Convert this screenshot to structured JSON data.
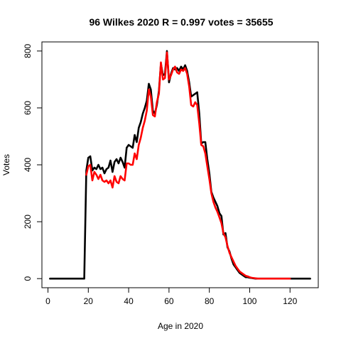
{
  "chart_data": {
    "type": "line",
    "title": "96 Wilkes 2020 R = 0.997 votes = 35655",
    "xlabel": "Age in 2020",
    "ylabel": "Votes",
    "xlim": [
      -3,
      134
    ],
    "ylim": [
      -32,
      832
    ],
    "x_ticks": [
      0,
      20,
      40,
      60,
      80,
      100,
      120
    ],
    "y_ticks": [
      0,
      200,
      400,
      600,
      800
    ],
    "series": [
      {
        "color": "#000000",
        "points": [
          [
            1,
            0
          ],
          [
            18,
            0
          ],
          [
            19,
            380
          ],
          [
            20,
            425
          ],
          [
            21,
            430
          ],
          [
            22,
            380
          ],
          [
            23,
            390
          ],
          [
            24,
            385
          ],
          [
            25,
            400
          ],
          [
            26,
            385
          ],
          [
            27,
            390
          ],
          [
            28,
            370
          ],
          [
            29,
            385
          ],
          [
            30,
            390
          ],
          [
            31,
            415
          ],
          [
            32,
            375
          ],
          [
            33,
            410
          ],
          [
            34,
            420
          ],
          [
            35,
            405
          ],
          [
            36,
            425
          ],
          [
            37,
            410
          ],
          [
            38,
            390
          ],
          [
            39,
            460
          ],
          [
            40,
            470
          ],
          [
            41,
            465
          ],
          [
            42,
            460
          ],
          [
            43,
            505
          ],
          [
            44,
            480
          ],
          [
            45,
            530
          ],
          [
            46,
            550
          ],
          [
            47,
            580
          ],
          [
            48,
            600
          ],
          [
            49,
            625
          ],
          [
            50,
            685
          ],
          [
            51,
            665
          ],
          [
            52,
            590
          ],
          [
            53,
            580
          ],
          [
            54,
            610
          ],
          [
            55,
            660
          ],
          [
            56,
            755
          ],
          [
            57,
            715
          ],
          [
            58,
            720
          ],
          [
            59,
            800
          ],
          [
            60,
            690
          ],
          [
            61,
            720
          ],
          [
            62,
            740
          ],
          [
            63,
            735
          ],
          [
            64,
            740
          ],
          [
            65,
            730
          ],
          [
            66,
            745
          ],
          [
            67,
            735
          ],
          [
            68,
            750
          ],
          [
            69,
            730
          ],
          [
            70,
            690
          ],
          [
            71,
            640
          ],
          [
            72,
            645
          ],
          [
            73,
            650
          ],
          [
            74,
            655
          ],
          [
            75,
            580
          ],
          [
            76,
            475
          ],
          [
            77,
            480
          ],
          [
            78,
            480
          ],
          [
            79,
            420
          ],
          [
            80,
            370
          ],
          [
            81,
            305
          ],
          [
            82,
            285
          ],
          [
            83,
            270
          ],
          [
            84,
            255
          ],
          [
            85,
            230
          ],
          [
            86,
            220
          ],
          [
            87,
            155
          ],
          [
            88,
            160
          ],
          [
            89,
            110
          ],
          [
            90,
            95
          ],
          [
            91,
            70
          ],
          [
            92,
            50
          ],
          [
            93,
            40
          ],
          [
            94,
            30
          ],
          [
            95,
            20
          ],
          [
            96,
            15
          ],
          [
            97,
            10
          ],
          [
            98,
            5
          ],
          [
            99,
            5
          ],
          [
            100,
            3
          ],
          [
            101,
            2
          ],
          [
            102,
            1
          ],
          [
            103,
            0
          ],
          [
            130,
            0
          ]
        ]
      },
      {
        "color": "#ff0000",
        "points": [
          [
            19,
            365
          ],
          [
            20,
            395
          ],
          [
            21,
            400
          ],
          [
            22,
            345
          ],
          [
            23,
            375
          ],
          [
            24,
            365
          ],
          [
            25,
            350
          ],
          [
            26,
            365
          ],
          [
            27,
            345
          ],
          [
            28,
            340
          ],
          [
            29,
            345
          ],
          [
            30,
            335
          ],
          [
            31,
            345
          ],
          [
            32,
            320
          ],
          [
            33,
            360
          ],
          [
            34,
            340
          ],
          [
            35,
            335
          ],
          [
            36,
            360
          ],
          [
            37,
            350
          ],
          [
            38,
            345
          ],
          [
            39,
            405
          ],
          [
            40,
            405
          ],
          [
            41,
            400
          ],
          [
            42,
            400
          ],
          [
            43,
            440
          ],
          [
            44,
            420
          ],
          [
            45,
            470
          ],
          [
            46,
            495
          ],
          [
            47,
            530
          ],
          [
            48,
            555
          ],
          [
            49,
            590
          ],
          [
            50,
            665
          ],
          [
            51,
            640
          ],
          [
            52,
            575
          ],
          [
            53,
            570
          ],
          [
            54,
            620
          ],
          [
            55,
            650
          ],
          [
            56,
            760
          ],
          [
            57,
            700
          ],
          [
            58,
            705
          ],
          [
            59,
            795
          ],
          [
            60,
            700
          ],
          [
            61,
            715
          ],
          [
            62,
            735
          ],
          [
            63,
            745
          ],
          [
            64,
            725
          ],
          [
            65,
            720
          ],
          [
            66,
            735
          ],
          [
            67,
            730
          ],
          [
            68,
            740
          ],
          [
            69,
            720
          ],
          [
            70,
            675
          ],
          [
            71,
            610
          ],
          [
            72,
            605
          ],
          [
            73,
            620
          ],
          [
            74,
            610
          ],
          [
            75,
            545
          ],
          [
            76,
            470
          ],
          [
            77,
            465
          ],
          [
            78,
            440
          ],
          [
            79,
            395
          ],
          [
            80,
            350
          ],
          [
            81,
            300
          ],
          [
            82,
            270
          ],
          [
            83,
            250
          ],
          [
            84,
            235
          ],
          [
            85,
            215
          ],
          [
            86,
            195
          ],
          [
            87,
            160
          ],
          [
            88,
            145
          ],
          [
            89,
            115
          ],
          [
            90,
            90
          ],
          [
            91,
            75
          ],
          [
            92,
            60
          ],
          [
            93,
            45
          ],
          [
            94,
            35
          ],
          [
            95,
            25
          ],
          [
            96,
            20
          ],
          [
            97,
            15
          ],
          [
            98,
            10
          ],
          [
            99,
            8
          ],
          [
            100,
            5
          ],
          [
            101,
            3
          ],
          [
            102,
            2
          ],
          [
            103,
            1
          ],
          [
            104,
            0
          ],
          [
            105,
            0
          ],
          [
            112,
            0
          ],
          [
            120,
            0
          ]
        ]
      }
    ]
  }
}
